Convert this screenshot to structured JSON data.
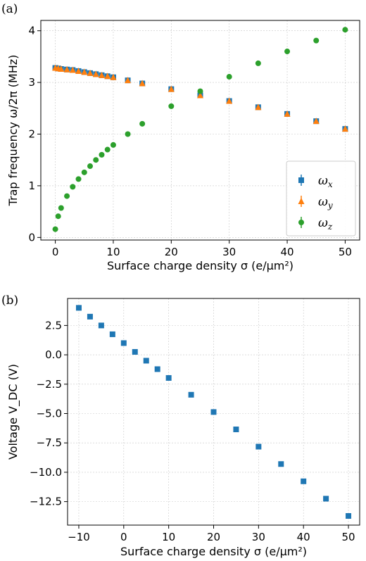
{
  "chart_data": [
    {
      "panel_label": "(a)",
      "type": "scatter",
      "xlabel": "Surface charge density σ (e/µm²)",
      "ylabel": "Trap frequency ω/2π (MHz)",
      "xlim": [
        -2.5,
        52.5
      ],
      "ylim": [
        -0.05,
        4.2
      ],
      "xticks": [
        0,
        10,
        20,
        30,
        40,
        50
      ],
      "yticks": [
        0,
        1,
        2,
        3,
        4
      ],
      "grid": true,
      "legend_position": "lower-right",
      "x": [
        0,
        0.5,
        1,
        2,
        3,
        4,
        5,
        6,
        7,
        8,
        9,
        10,
        12.5,
        15,
        20,
        25,
        30,
        35,
        40,
        45,
        50
      ],
      "series": [
        {
          "name": "ωx",
          "marker": "square",
          "color": "#1f77b4",
          "values": [
            3.28,
            3.27,
            3.26,
            3.25,
            3.24,
            3.22,
            3.2,
            3.18,
            3.16,
            3.14,
            3.12,
            3.1,
            3.04,
            2.98,
            2.87,
            2.75,
            2.64,
            2.52,
            2.39,
            2.25,
            2.1
          ]
        },
        {
          "name": "ωy",
          "marker": "triangle",
          "color": "#ff7f0e",
          "values": [
            3.28,
            3.27,
            3.26,
            3.25,
            3.24,
            3.22,
            3.2,
            3.18,
            3.16,
            3.14,
            3.12,
            3.1,
            3.04,
            2.98,
            2.87,
            2.75,
            2.64,
            2.52,
            2.39,
            2.25,
            2.1
          ]
        },
        {
          "name": "ωz",
          "marker": "circle",
          "color": "#2ca02c",
          "values": [
            0.16,
            0.41,
            0.57,
            0.8,
            0.98,
            1.13,
            1.26,
            1.38,
            1.5,
            1.6,
            1.7,
            1.79,
            2.0,
            2.2,
            2.54,
            2.83,
            3.11,
            3.37,
            3.6,
            3.81,
            4.02
          ]
        }
      ]
    },
    {
      "panel_label": "(b)",
      "type": "scatter",
      "xlabel": "Surface charge density σ (e/µm²)",
      "ylabel": "Voltage V_DC (V)",
      "xlim": [
        -12.5,
        52.5
      ],
      "ylim": [
        -14.5,
        4.8
      ],
      "xticks": [
        -10,
        0,
        10,
        20,
        30,
        40,
        50
      ],
      "yticks": [
        2.5,
        0.0,
        -2.5,
        -5.0,
        -7.5,
        -10.0,
        -12.5
      ],
      "ytick_labels": [
        "2.5",
        "0.0",
        "−2.5",
        "−5.0",
        "−7.5",
        "−10.0",
        "−12.5"
      ],
      "xtick_labels": [
        "−10",
        "0",
        "10",
        "20",
        "30",
        "40",
        "50"
      ],
      "grid": true,
      "x": [
        -10,
        -7.5,
        -5,
        -2.5,
        0,
        2.5,
        5,
        7.5,
        10,
        15,
        20,
        25,
        30,
        35,
        40,
        45,
        50
      ],
      "series": [
        {
          "marker": "square",
          "color": "#1f77b4",
          "values": [
            4.0,
            3.25,
            2.5,
            1.75,
            1.0,
            0.25,
            -0.5,
            -1.22,
            -1.97,
            -3.4,
            -4.87,
            -6.35,
            -7.82,
            -9.3,
            -10.77,
            -12.25,
            -13.72
          ]
        }
      ]
    }
  ]
}
